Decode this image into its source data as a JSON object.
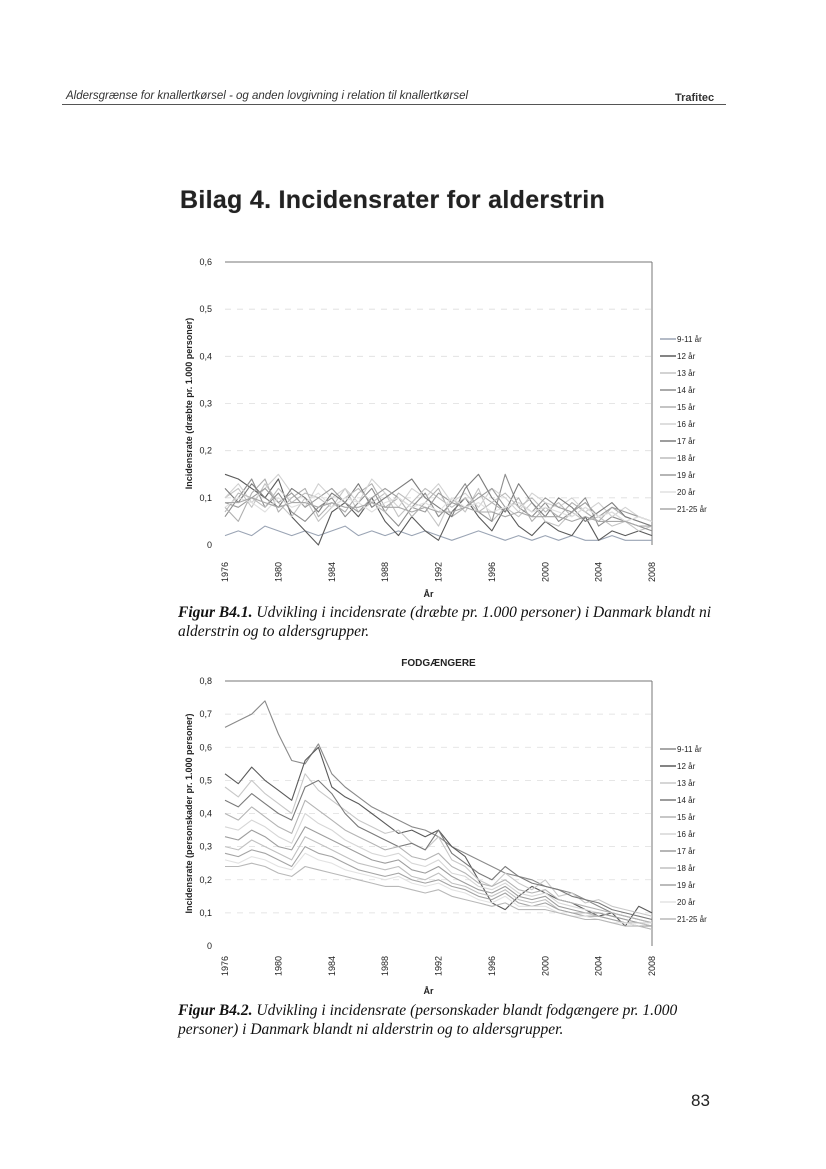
{
  "header": {
    "left": "Aldersgrænse for knallertkørsel - og anden lovgivning i relation til knallertkørsel",
    "right": "Trafitec"
  },
  "page_title": "Bilag 4. Incidensrater for alderstrin",
  "captions": [
    {
      "label": "Figur B4.1.",
      "text": "Udvikling i incidensrate (dræbte pr. 1.000 personer) i Danmark blandt ni alderstrin og to aldersgrupper."
    },
    {
      "label": "Figur B4.2.",
      "text": "Udvikling i incidensrate (personskader blandt fodgængere pr. 1.000 personer) i Danmark blandt ni alderstrin og to aldersgrupper."
    }
  ],
  "page_number": "83",
  "chart_data": [
    {
      "type": "line",
      "title": "",
      "xlabel": "År",
      "ylabel": "Incidensrate (dræbte pr. 1.000 personer)",
      "ylim": [
        0,
        0.6
      ],
      "yticks": [
        "0",
        "0,1",
        "0,2",
        "0,3",
        "0,4",
        "0,5",
        "0,6"
      ],
      "xticks": [
        "1976",
        "1980",
        "1984",
        "1988",
        "1992",
        "1996",
        "2000",
        "2004",
        "2008"
      ],
      "grid": true,
      "legend_position": "right",
      "x": [
        1976,
        1977,
        1978,
        1979,
        1980,
        1981,
        1982,
        1983,
        1984,
        1985,
        1986,
        1987,
        1988,
        1989,
        1990,
        1991,
        1992,
        1993,
        1994,
        1995,
        1996,
        1997,
        1998,
        1999,
        2000,
        2001,
        2002,
        2003,
        2004,
        2005,
        2006,
        2007,
        2008
      ],
      "series": [
        {
          "name": "9-11 år",
          "color": "#9aa4b4",
          "values": [
            0.02,
            0.03,
            0.02,
            0.04,
            0.03,
            0.02,
            0.03,
            0.02,
            0.03,
            0.04,
            0.02,
            0.03,
            0.02,
            0.03,
            0.02,
            0.03,
            0.02,
            0.01,
            0.02,
            0.03,
            0.02,
            0.01,
            0.02,
            0.01,
            0.02,
            0.01,
            0.02,
            0.01,
            0.01,
            0.02,
            0.01,
            0.01,
            0.01
          ]
        },
        {
          "name": "12 år",
          "color": "#5a5a5a",
          "values": [
            0.15,
            0.14,
            0.12,
            0.1,
            0.14,
            0.06,
            0.03,
            0.0,
            0.07,
            0.09,
            0.06,
            0.1,
            0.05,
            0.02,
            0.06,
            0.03,
            0.01,
            0.07,
            0.1,
            0.06,
            0.03,
            0.08,
            0.04,
            0.02,
            0.05,
            0.03,
            0.02,
            0.06,
            0.01,
            0.03,
            0.02,
            0.03,
            0.02
          ]
        },
        {
          "name": "13 år",
          "color": "#c4c4c4",
          "values": [
            0.1,
            0.12,
            0.08,
            0.13,
            0.09,
            0.06,
            0.1,
            0.05,
            0.08,
            0.12,
            0.07,
            0.09,
            0.11,
            0.06,
            0.09,
            0.08,
            0.04,
            0.1,
            0.07,
            0.12,
            0.05,
            0.08,
            0.06,
            0.09,
            0.05,
            0.04,
            0.07,
            0.05,
            0.06,
            0.04,
            0.05,
            0.03,
            0.04
          ]
        },
        {
          "name": "14 år",
          "color": "#8e8e8e",
          "values": [
            0.06,
            0.1,
            0.14,
            0.08,
            0.11,
            0.07,
            0.05,
            0.08,
            0.1,
            0.06,
            0.09,
            0.12,
            0.07,
            0.04,
            0.08,
            0.11,
            0.06,
            0.09,
            0.13,
            0.07,
            0.05,
            0.15,
            0.08,
            0.06,
            0.09,
            0.05,
            0.07,
            0.1,
            0.04,
            0.06,
            0.05,
            0.04,
            0.03
          ]
        },
        {
          "name": "15 år",
          "color": "#b0b0b0",
          "values": [
            0.08,
            0.05,
            0.11,
            0.14,
            0.07,
            0.1,
            0.12,
            0.06,
            0.09,
            0.07,
            0.11,
            0.13,
            0.08,
            0.1,
            0.06,
            0.09,
            0.12,
            0.06,
            0.08,
            0.11,
            0.09,
            0.07,
            0.1,
            0.05,
            0.08,
            0.06,
            0.09,
            0.07,
            0.05,
            0.08,
            0.06,
            0.05,
            0.04
          ]
        },
        {
          "name": "16 år",
          "color": "#d2d2d2",
          "values": [
            0.1,
            0.13,
            0.09,
            0.12,
            0.15,
            0.11,
            0.08,
            0.13,
            0.1,
            0.12,
            0.09,
            0.14,
            0.11,
            0.08,
            0.12,
            0.1,
            0.13,
            0.09,
            0.11,
            0.08,
            0.12,
            0.1,
            0.07,
            0.11,
            0.09,
            0.08,
            0.1,
            0.07,
            0.09,
            0.06,
            0.08,
            0.06,
            0.05
          ]
        },
        {
          "name": "17 år",
          "color": "#7c7c7c",
          "values": [
            0.12,
            0.09,
            0.13,
            0.1,
            0.08,
            0.12,
            0.1,
            0.07,
            0.11,
            0.09,
            0.13,
            0.08,
            0.1,
            0.12,
            0.14,
            0.1,
            0.08,
            0.06,
            0.12,
            0.15,
            0.1,
            0.07,
            0.13,
            0.09,
            0.06,
            0.1,
            0.08,
            0.05,
            0.07,
            0.09,
            0.06,
            0.05,
            0.04
          ]
        },
        {
          "name": "18 år",
          "color": "#bcbcbc",
          "values": [
            0.07,
            0.11,
            0.1,
            0.08,
            0.12,
            0.09,
            0.11,
            0.1,
            0.08,
            0.1,
            0.12,
            0.09,
            0.07,
            0.11,
            0.09,
            0.12,
            0.1,
            0.08,
            0.1,
            0.07,
            0.09,
            0.11,
            0.08,
            0.1,
            0.07,
            0.09,
            0.06,
            0.08,
            0.06,
            0.07,
            0.05,
            0.06,
            0.05
          ]
        },
        {
          "name": "19 år",
          "color": "#9c9c9c",
          "values": [
            0.09,
            0.08,
            0.1,
            0.12,
            0.09,
            0.11,
            0.08,
            0.1,
            0.12,
            0.09,
            0.07,
            0.1,
            0.12,
            0.1,
            0.08,
            0.07,
            0.11,
            0.09,
            0.08,
            0.1,
            0.12,
            0.08,
            0.09,
            0.07,
            0.1,
            0.08,
            0.07,
            0.09,
            0.06,
            0.08,
            0.07,
            0.06,
            0.05
          ]
        },
        {
          "name": "20 år",
          "color": "#e0e0e0",
          "values": [
            0.08,
            0.1,
            0.09,
            0.07,
            0.1,
            0.08,
            0.09,
            0.11,
            0.08,
            0.1,
            0.09,
            0.07,
            0.09,
            0.1,
            0.08,
            0.09,
            0.07,
            0.1,
            0.08,
            0.09,
            0.07,
            0.08,
            0.09,
            0.07,
            0.08,
            0.07,
            0.06,
            0.08,
            0.06,
            0.07,
            0.05,
            0.06,
            0.05
          ]
        },
        {
          "name": "21-25 år",
          "color": "#a8a8a8",
          "values": [
            0.09,
            0.09,
            0.1,
            0.09,
            0.08,
            0.09,
            0.09,
            0.08,
            0.09,
            0.08,
            0.08,
            0.09,
            0.08,
            0.08,
            0.07,
            0.08,
            0.07,
            0.07,
            0.08,
            0.07,
            0.07,
            0.06,
            0.07,
            0.06,
            0.06,
            0.06,
            0.05,
            0.06,
            0.05,
            0.05,
            0.05,
            0.04,
            0.04
          ]
        }
      ]
    },
    {
      "type": "line",
      "title": "FODGÆNGERE",
      "xlabel": "År",
      "ylabel": "Incidensrate (personskader pr. 1.000 personer)",
      "ylim": [
        0,
        0.8
      ],
      "yticks": [
        "0",
        "0,1",
        "0,2",
        "0,3",
        "0,4",
        "0,5",
        "0,6",
        "0,7",
        "0,8"
      ],
      "xticks": [
        "1976",
        "1980",
        "1984",
        "1988",
        "1992",
        "1996",
        "2000",
        "2004",
        "2008"
      ],
      "grid": true,
      "legend_position": "right",
      "x": [
        1976,
        1977,
        1978,
        1979,
        1980,
        1981,
        1982,
        1983,
        1984,
        1985,
        1986,
        1987,
        1988,
        1989,
        1990,
        1991,
        1992,
        1993,
        1994,
        1995,
        1996,
        1997,
        1998,
        1999,
        2000,
        2001,
        2002,
        2003,
        2004,
        2005,
        2006,
        2007,
        2008
      ],
      "series": [
        {
          "name": "9-11 år",
          "color": "#8a8a8a",
          "values": [
            0.66,
            0.68,
            0.7,
            0.74,
            0.64,
            0.56,
            0.55,
            0.61,
            0.52,
            0.48,
            0.45,
            0.42,
            0.4,
            0.38,
            0.36,
            0.35,
            0.33,
            0.3,
            0.28,
            0.26,
            0.24,
            0.22,
            0.21,
            0.2,
            0.18,
            0.17,
            0.16,
            0.14,
            0.12,
            0.1,
            0.09,
            0.08,
            0.07
          ]
        },
        {
          "name": "12 år",
          "color": "#5a5a5a",
          "values": [
            0.52,
            0.49,
            0.54,
            0.5,
            0.47,
            0.44,
            0.56,
            0.6,
            0.48,
            0.45,
            0.43,
            0.4,
            0.37,
            0.34,
            0.35,
            0.33,
            0.35,
            0.3,
            0.27,
            0.2,
            0.13,
            0.11,
            0.15,
            0.18,
            0.16,
            0.14,
            0.13,
            0.11,
            0.09,
            0.1,
            0.06,
            0.12,
            0.1
          ]
        },
        {
          "name": "13 år",
          "color": "#c8c8c8",
          "values": [
            0.48,
            0.45,
            0.5,
            0.46,
            0.43,
            0.4,
            0.52,
            0.47,
            0.44,
            0.41,
            0.38,
            0.36,
            0.34,
            0.35,
            0.31,
            0.29,
            0.33,
            0.26,
            0.24,
            0.2,
            0.18,
            0.22,
            0.19,
            0.17,
            0.2,
            0.15,
            0.16,
            0.13,
            0.14,
            0.12,
            0.11,
            0.1,
            0.09
          ]
        },
        {
          "name": "14 år",
          "color": "#7a7a7a",
          "values": [
            0.44,
            0.42,
            0.46,
            0.43,
            0.4,
            0.38,
            0.48,
            0.5,
            0.46,
            0.4,
            0.36,
            0.34,
            0.32,
            0.3,
            0.31,
            0.29,
            0.35,
            0.28,
            0.25,
            0.22,
            0.2,
            0.24,
            0.21,
            0.19,
            0.18,
            0.17,
            0.15,
            0.14,
            0.13,
            0.11,
            0.1,
            0.09,
            0.08
          ]
        },
        {
          "name": "15 år",
          "color": "#b4b4b4",
          "values": [
            0.4,
            0.38,
            0.42,
            0.39,
            0.36,
            0.34,
            0.44,
            0.41,
            0.38,
            0.35,
            0.33,
            0.31,
            0.29,
            0.3,
            0.27,
            0.26,
            0.28,
            0.24,
            0.22,
            0.19,
            0.18,
            0.2,
            0.17,
            0.16,
            0.17,
            0.14,
            0.13,
            0.12,
            0.11,
            0.1,
            0.09,
            0.08,
            0.07
          ]
        },
        {
          "name": "16 år",
          "color": "#d6d6d6",
          "values": [
            0.36,
            0.35,
            0.38,
            0.36,
            0.33,
            0.31,
            0.4,
            0.37,
            0.35,
            0.32,
            0.3,
            0.28,
            0.27,
            0.28,
            0.25,
            0.24,
            0.26,
            0.22,
            0.21,
            0.18,
            0.17,
            0.19,
            0.16,
            0.15,
            0.16,
            0.13,
            0.12,
            0.11,
            0.1,
            0.09,
            0.08,
            0.07,
            0.07
          ]
        },
        {
          "name": "17 år",
          "color": "#9e9e9e",
          "values": [
            0.33,
            0.32,
            0.35,
            0.33,
            0.3,
            0.29,
            0.36,
            0.34,
            0.32,
            0.3,
            0.28,
            0.26,
            0.25,
            0.26,
            0.23,
            0.22,
            0.24,
            0.21,
            0.19,
            0.17,
            0.16,
            0.18,
            0.15,
            0.14,
            0.15,
            0.12,
            0.11,
            0.1,
            0.1,
            0.09,
            0.08,
            0.07,
            0.06
          ]
        },
        {
          "name": "18 år",
          "color": "#c0c0c0",
          "values": [
            0.3,
            0.29,
            0.32,
            0.3,
            0.28,
            0.26,
            0.33,
            0.31,
            0.29,
            0.27,
            0.25,
            0.24,
            0.23,
            0.24,
            0.21,
            0.2,
            0.22,
            0.19,
            0.18,
            0.16,
            0.15,
            0.17,
            0.14,
            0.13,
            0.14,
            0.11,
            0.1,
            0.1,
            0.09,
            0.08,
            0.07,
            0.07,
            0.06
          ]
        },
        {
          "name": "19 år",
          "color": "#a4a4a4",
          "values": [
            0.28,
            0.27,
            0.29,
            0.28,
            0.26,
            0.24,
            0.3,
            0.28,
            0.27,
            0.25,
            0.23,
            0.22,
            0.21,
            0.22,
            0.2,
            0.19,
            0.2,
            0.18,
            0.17,
            0.15,
            0.14,
            0.16,
            0.13,
            0.12,
            0.13,
            0.11,
            0.1,
            0.09,
            0.09,
            0.08,
            0.07,
            0.06,
            0.06
          ]
        },
        {
          "name": "20 år",
          "color": "#e2e2e2",
          "values": [
            0.26,
            0.25,
            0.27,
            0.26,
            0.24,
            0.23,
            0.28,
            0.26,
            0.25,
            0.23,
            0.22,
            0.21,
            0.2,
            0.21,
            0.19,
            0.18,
            0.19,
            0.17,
            0.16,
            0.14,
            0.13,
            0.15,
            0.12,
            0.12,
            0.12,
            0.1,
            0.09,
            0.09,
            0.08,
            0.07,
            0.07,
            0.06,
            0.05
          ]
        },
        {
          "name": "21-25 år",
          "color": "#b8b8b8",
          "values": [
            0.24,
            0.24,
            0.25,
            0.24,
            0.22,
            0.21,
            0.24,
            0.23,
            0.22,
            0.21,
            0.2,
            0.19,
            0.18,
            0.18,
            0.17,
            0.16,
            0.17,
            0.15,
            0.14,
            0.13,
            0.12,
            0.13,
            0.11,
            0.11,
            0.11,
            0.1,
            0.09,
            0.08,
            0.08,
            0.07,
            0.06,
            0.06,
            0.05
          ]
        }
      ]
    }
  ]
}
